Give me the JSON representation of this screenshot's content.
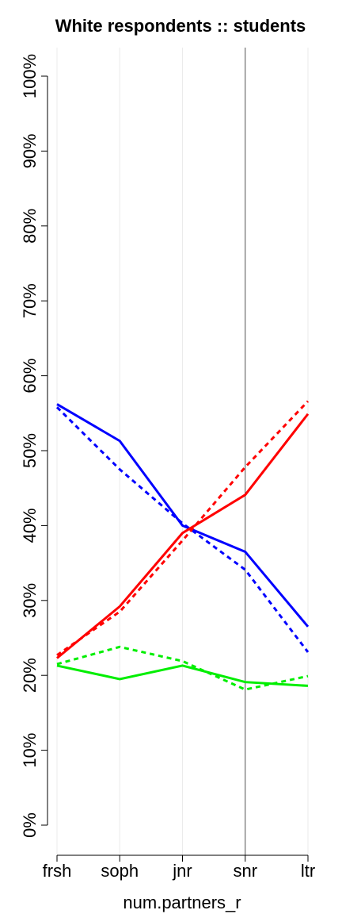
{
  "chart_data": {
    "type": "line",
    "title": "White respondents :: students",
    "x_label": "num.partners_r",
    "categories": [
      "frsh",
      "soph",
      "jnr",
      "snr",
      "ltr"
    ],
    "series": [
      {
        "color": "#0000ff",
        "dash": false,
        "values": [
          56.2,
          51.3,
          40.0,
          36.5,
          26.5
        ]
      },
      {
        "color": "#0000ff",
        "dash": true,
        "values": [
          55.8,
          47.5,
          40.3,
          34.1,
          23.1
        ]
      },
      {
        "color": "#ff0000",
        "dash": false,
        "values": [
          22.3,
          29.2,
          39.0,
          44.1,
          54.9
        ]
      },
      {
        "color": "#ff0000",
        "dash": true,
        "values": [
          22.7,
          28.5,
          38.0,
          47.8,
          56.6
        ]
      },
      {
        "color": "#00ee00",
        "dash": false,
        "values": [
          21.3,
          19.5,
          21.3,
          19.1,
          18.6
        ]
      },
      {
        "color": "#00ee00",
        "dash": true,
        "values": [
          21.5,
          23.8,
          21.9,
          18.1,
          19.9
        ]
      }
    ],
    "ylim": [
      0,
      100
    ],
    "yticks": [
      {
        "value": 0,
        "label": "0%"
      },
      {
        "value": 10,
        "label": "10%"
      },
      {
        "value": 20,
        "label": "20%"
      },
      {
        "value": 30,
        "label": "30%"
      },
      {
        "value": 40,
        "label": "40%"
      },
      {
        "value": 50,
        "label": "50%"
      },
      {
        "value": 60,
        "label": "60%"
      },
      {
        "value": 70,
        "label": "70%"
      },
      {
        "value": 80,
        "label": "80%"
      },
      {
        "value": 90,
        "label": "90%"
      },
      {
        "value": 100,
        "label": "100%"
      }
    ],
    "grid": "x",
    "vline_at_index": 3
  }
}
